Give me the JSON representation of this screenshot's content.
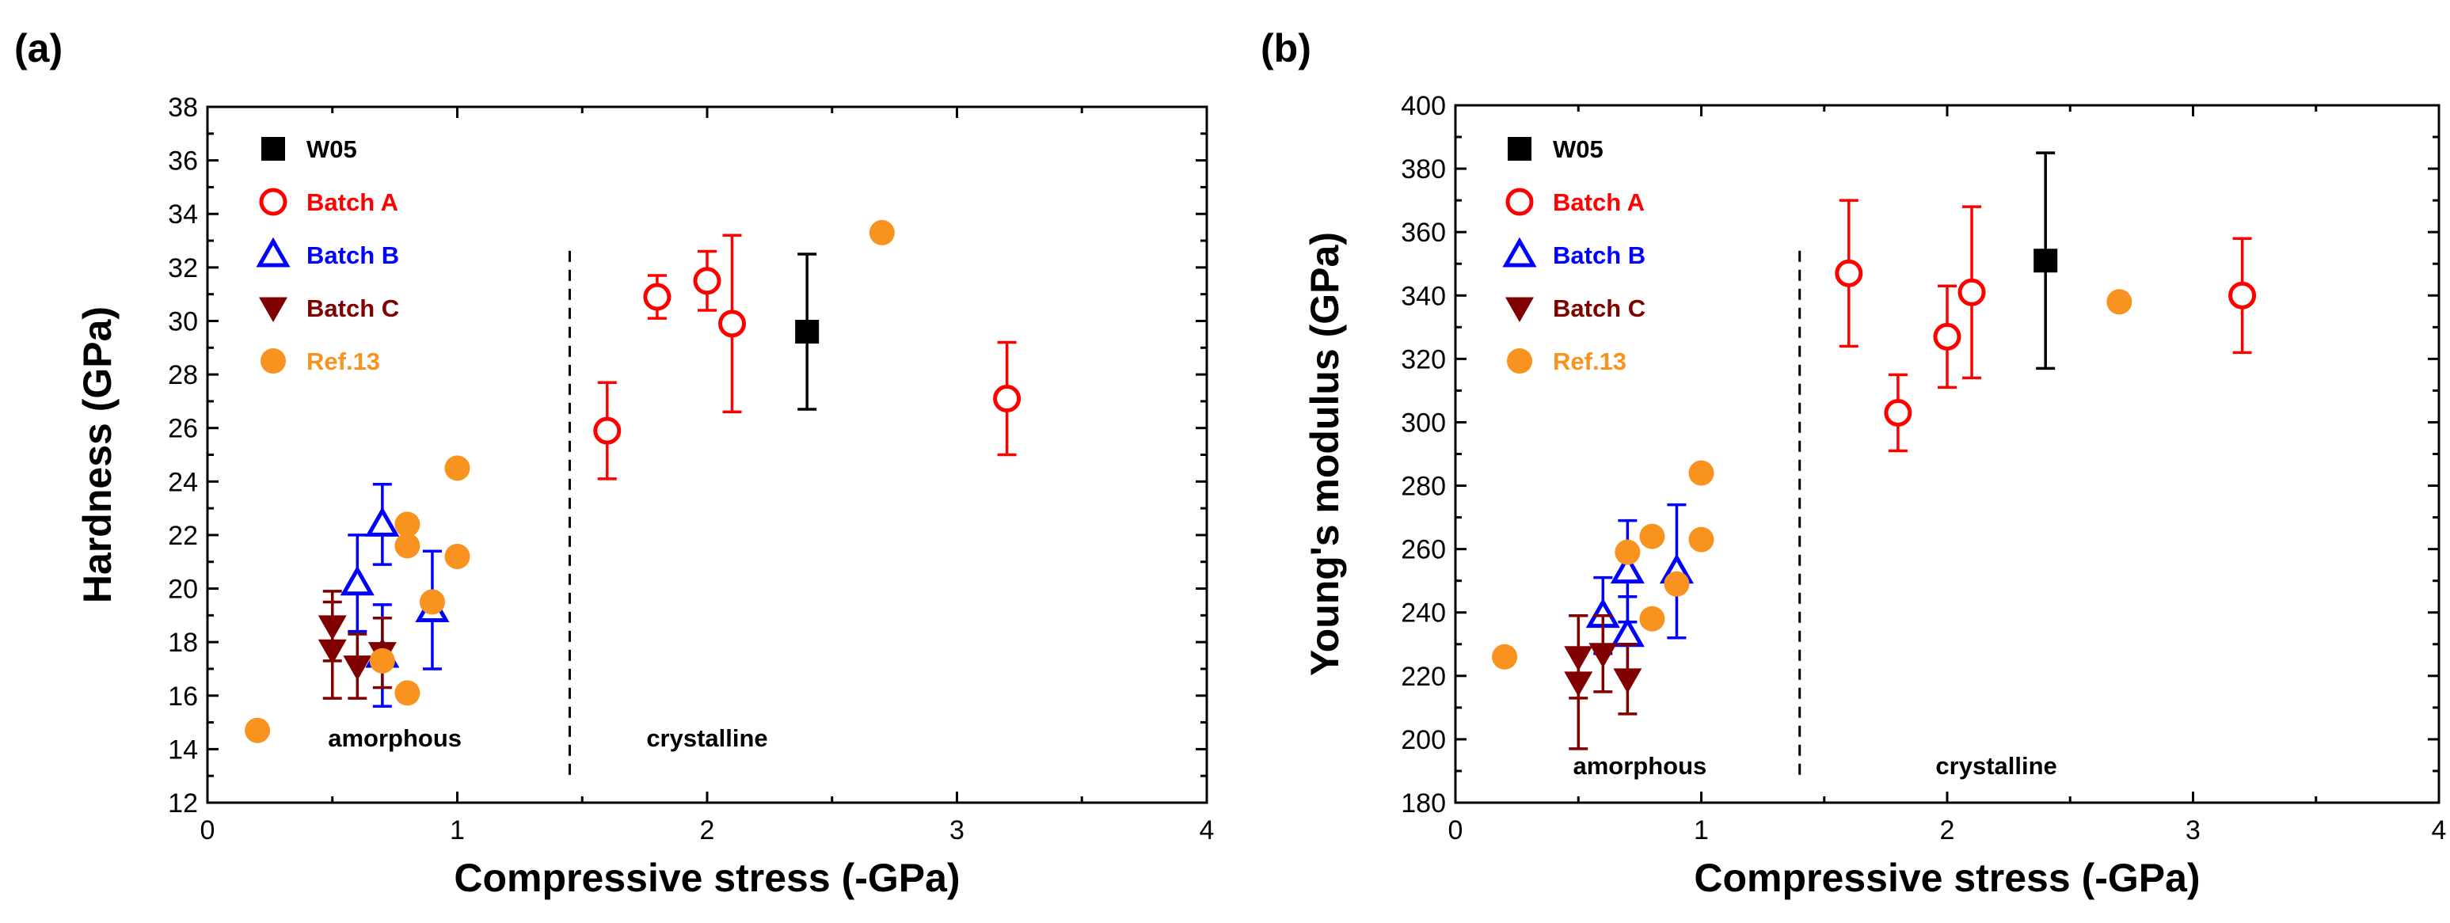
{
  "chart_data": [
    {
      "panel_label": "(a)",
      "type": "scatter",
      "xlabel": "Compressive stress (-GPa)",
      "ylabel": "Hardness (GPa)",
      "xlim": [
        0,
        4
      ],
      "ylim": [
        12,
        38
      ],
      "xticks": [
        0,
        1,
        2,
        3,
        4
      ],
      "yticks": [
        12,
        14,
        16,
        18,
        20,
        22,
        24,
        26,
        28,
        30,
        32,
        34,
        36,
        38
      ],
      "legend_position": "top-left",
      "divider_x": 1.45,
      "regions": [
        {
          "text": "amorphous",
          "x": 0.75,
          "y": 14.1
        },
        {
          "text": "crystalline",
          "x": 2.0,
          "y": 14.1
        }
      ],
      "series": [
        {
          "name": "W05",
          "marker": "square",
          "color": "#000000",
          "points": [
            {
              "x": 2.4,
              "y": 29.6,
              "err": 2.9
            }
          ]
        },
        {
          "name": "Batch A",
          "marker": "circle-open",
          "color": "#ff0000",
          "points": [
            {
              "x": 1.6,
              "y": 25.9,
              "err": 1.8
            },
            {
              "x": 1.8,
              "y": 30.9,
              "err": 0.8
            },
            {
              "x": 2.0,
              "y": 31.5,
              "err": 1.1
            },
            {
              "x": 2.1,
              "y": 29.9,
              "err": 3.3
            },
            {
              "x": 3.2,
              "y": 27.1,
              "err": 2.1
            }
          ]
        },
        {
          "name": "Batch B",
          "marker": "triangle-up-open",
          "color": "#0000ff",
          "points": [
            {
              "x": 0.6,
              "y": 20.2,
              "err": 1.8
            },
            {
              "x": 0.7,
              "y": 22.4,
              "err": 1.5
            },
            {
              "x": 0.7,
              "y": 17.5,
              "err": 1.9
            },
            {
              "x": 0.9,
              "y": 19.2,
              "err": 2.2
            }
          ]
        },
        {
          "name": "Batch C",
          "marker": "triangle-down",
          "color": "#800000",
          "points": [
            {
              "x": 0.5,
              "y": 18.6,
              "err": 1.3
            },
            {
              "x": 0.5,
              "y": 17.7,
              "err": 1.8
            },
            {
              "x": 0.6,
              "y": 17.1,
              "err": 1.2
            },
            {
              "x": 0.7,
              "y": 17.6,
              "err": 1.3
            }
          ]
        },
        {
          "name": "Ref.13",
          "marker": "circle",
          "color": "#f7931e",
          "points": [
            {
              "x": 0.2,
              "y": 14.7
            },
            {
              "x": 0.7,
              "y": 17.3
            },
            {
              "x": 0.8,
              "y": 16.1
            },
            {
              "x": 0.8,
              "y": 21.6
            },
            {
              "x": 0.8,
              "y": 22.4
            },
            {
              "x": 0.9,
              "y": 19.5
            },
            {
              "x": 1.0,
              "y": 21.2
            },
            {
              "x": 1.0,
              "y": 24.5
            },
            {
              "x": 2.7,
              "y": 33.3
            }
          ]
        }
      ]
    },
    {
      "panel_label": "(b)",
      "type": "scatter",
      "xlabel": "Compressive stress (-GPa)",
      "ylabel": "Young's modulus (GPa)",
      "xlim": [
        0,
        4
      ],
      "ylim": [
        180,
        400
      ],
      "xticks": [
        0,
        1,
        2,
        3,
        4
      ],
      "yticks": [
        180,
        200,
        220,
        240,
        260,
        280,
        300,
        320,
        340,
        360,
        380,
        400
      ],
      "legend_position": "top-left",
      "divider_x": 1.4,
      "regions": [
        {
          "text": "amorphous",
          "x": 0.75,
          "y": 189
        },
        {
          "text": "crystalline",
          "x": 2.2,
          "y": 189
        }
      ],
      "series": [
        {
          "name": "W05",
          "marker": "square",
          "color": "#000000",
          "points": [
            {
              "x": 2.4,
              "y": 351,
              "err": 34
            }
          ]
        },
        {
          "name": "Batch A",
          "marker": "circle-open",
          "color": "#ff0000",
          "points": [
            {
              "x": 1.6,
              "y": 347,
              "err": 23
            },
            {
              "x": 1.8,
              "y": 303,
              "err": 12
            },
            {
              "x": 2.0,
              "y": 327,
              "err": 16
            },
            {
              "x": 2.1,
              "y": 341,
              "err": 27
            },
            {
              "x": 3.2,
              "y": 340,
              "err": 18
            }
          ]
        },
        {
          "name": "Batch B",
          "marker": "triangle-up-open",
          "color": "#0000ff",
          "points": [
            {
              "x": 0.6,
              "y": 239,
              "err": 12
            },
            {
              "x": 0.7,
              "y": 253,
              "err": 16
            },
            {
              "x": 0.7,
              "y": 233,
              "err": 12
            },
            {
              "x": 0.9,
              "y": 253,
              "err": 21
            }
          ]
        },
        {
          "name": "Batch C",
          "marker": "triangle-down",
          "color": "#800000",
          "points": [
            {
              "x": 0.5,
              "y": 226,
              "err": 13
            },
            {
              "x": 0.5,
              "y": 218,
              "err": 21
            },
            {
              "x": 0.6,
              "y": 227,
              "err": 12
            },
            {
              "x": 0.7,
              "y": 219,
              "err": 11
            }
          ]
        },
        {
          "name": "Ref.13",
          "marker": "circle",
          "color": "#f7931e",
          "points": [
            {
              "x": 0.2,
              "y": 226
            },
            {
              "x": 0.7,
              "y": 259
            },
            {
              "x": 0.8,
              "y": 238
            },
            {
              "x": 0.8,
              "y": 264
            },
            {
              "x": 0.9,
              "y": 249
            },
            {
              "x": 1.0,
              "y": 263
            },
            {
              "x": 1.0,
              "y": 284
            },
            {
              "x": 2.7,
              "y": 338
            }
          ]
        }
      ]
    }
  ]
}
